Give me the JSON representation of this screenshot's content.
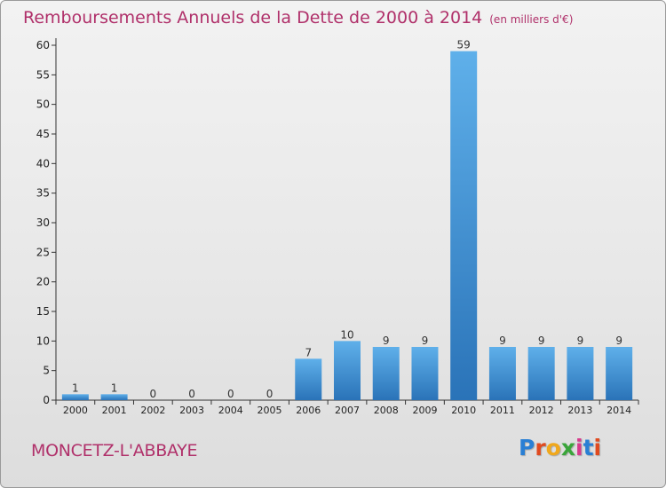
{
  "header": {
    "title": "Remboursements Annuels de la Dette de 2000 à 2014",
    "unit": "(en milliers d'€)"
  },
  "footer": {
    "commune": "MONCETZ-L'ABBAYE"
  },
  "logo": {
    "text": "Proxiti",
    "letter_colors": [
      "#2a7fd4",
      "#e04a1f",
      "#f0a81c",
      "#3aa53a",
      "#d83a8c",
      "#2a7fd4",
      "#e04a1f"
    ]
  },
  "colors": {
    "accent": "#b0306a",
    "bar_dark": "#2a73b8",
    "bar_light": "#5fb0ea",
    "axis": "#333333"
  },
  "chart_data": {
    "type": "bar",
    "title": "Remboursements Annuels de la Dette de 2000 à 2014",
    "subtitle": "(en milliers d'€)",
    "categories": [
      "2000",
      "2001",
      "2002",
      "2003",
      "2004",
      "2005",
      "2006",
      "2007",
      "2008",
      "2009",
      "2010",
      "2011",
      "2012",
      "2013",
      "2014"
    ],
    "values": [
      1,
      1,
      0,
      0,
      0,
      0,
      7,
      10,
      9,
      9,
      59,
      9,
      9,
      9,
      9
    ],
    "ylim": [
      0,
      60
    ],
    "yticks": [
      0,
      5,
      10,
      15,
      20,
      25,
      30,
      35,
      40,
      45,
      50,
      55,
      60
    ],
    "grid": false,
    "data_labels": true
  }
}
